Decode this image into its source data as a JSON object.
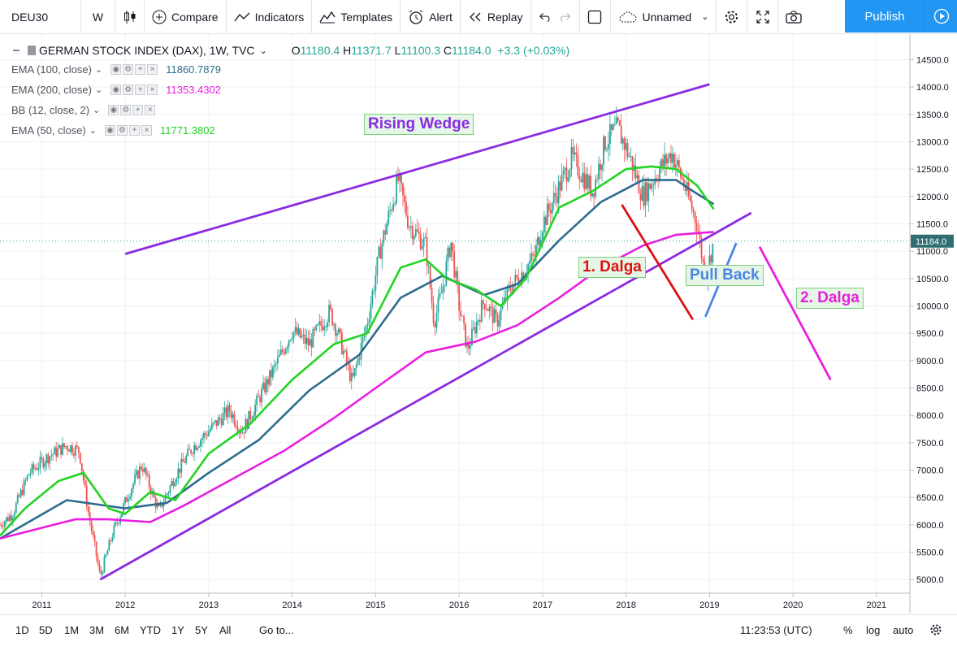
{
  "toolbar": {
    "symbol": "DEU30",
    "interval": "W",
    "compare": "Compare",
    "indicators": "Indicators",
    "templates": "Templates",
    "alert": "Alert",
    "replay": "Replay",
    "layout_name": "Unnamed",
    "publish": "Publish"
  },
  "legend": {
    "title": "GERMAN STOCK INDEX (DAX), 1W, TVC",
    "ohlc": {
      "o_label": "O",
      "o": "11180.4",
      "h_label": "H",
      "h": "11371.7",
      "l_label": "L",
      "l": "11100.3",
      "c_label": "C",
      "c": "11184.0",
      "change": "+3.3 (+0.03%)"
    },
    "indicators": [
      {
        "name": "EMA (100, close)",
        "value": "11860.7879",
        "color": "#2e6c8e"
      },
      {
        "name": "EMA (200, close)",
        "value": "11353.4302",
        "color": "#e91ee0"
      },
      {
        "name": "BB (12, close, 2)",
        "value": "",
        "color": "#999999"
      },
      {
        "name": "EMA (50, close)",
        "value": "11771.3802",
        "color": "#22d322"
      }
    ]
  },
  "annotations": {
    "rising_wedge": "Rising Wedge",
    "wave1": "1. Dalga",
    "pullback": "Pull Back",
    "wave2": "2. Dalga"
  },
  "chart_data": {
    "type": "candlestick",
    "title": "GERMAN STOCK INDEX (DAX), 1W, TVC",
    "x_ticks": [
      "2011",
      "2012",
      "2013",
      "2014",
      "2015",
      "2016",
      "2017",
      "2018",
      "2019",
      "2020",
      "2021"
    ],
    "y_ticks": [
      5000.0,
      5500.0,
      6000.0,
      6500.0,
      7000.0,
      7500.0,
      8000.0,
      8500.0,
      9000.0,
      9500.0,
      10000.0,
      10500.0,
      11000.0,
      11500.0,
      12000.0,
      12500.0,
      13000.0,
      13500.0,
      14000.0,
      14500.0
    ],
    "ylim": [
      4750,
      14700
    ],
    "xlim": [
      2010.5,
      2021.4
    ],
    "last_price": "11184.0",
    "price_path": [
      [
        2010.5,
        6000
      ],
      [
        2010.65,
        6200
      ],
      [
        2010.85,
        6950
      ],
      [
        2011.08,
        7250
      ],
      [
        2011.3,
        7450
      ],
      [
        2011.45,
        7350
      ],
      [
        2011.55,
        6300
      ],
      [
        2011.7,
        5050
      ],
      [
        2011.85,
        5850
      ],
      [
        2012.05,
        6600
      ],
      [
        2012.2,
        7100
      ],
      [
        2012.4,
        6250
      ],
      [
        2012.6,
        6900
      ],
      [
        2012.8,
        7400
      ],
      [
        2013.05,
        7800
      ],
      [
        2013.25,
        8100
      ],
      [
        2013.4,
        7700
      ],
      [
        2013.6,
        8300
      ],
      [
        2013.8,
        8900
      ],
      [
        2014.0,
        9550
      ],
      [
        2014.2,
        9300
      ],
      [
        2014.45,
        9900
      ],
      [
        2014.55,
        9500
      ],
      [
        2014.72,
        8600
      ],
      [
        2014.9,
        9700
      ],
      [
        2015.05,
        11000
      ],
      [
        2015.2,
        11900
      ],
      [
        2015.27,
        12300
      ],
      [
        2015.4,
        11500
      ],
      [
        2015.6,
        11100
      ],
      [
        2015.7,
        9700
      ],
      [
        2015.8,
        10300
      ],
      [
        2015.9,
        11200
      ],
      [
        2016.0,
        10000
      ],
      [
        2016.1,
        9200
      ],
      [
        2016.3,
        10100
      ],
      [
        2016.45,
        9700
      ],
      [
        2016.6,
        10300
      ],
      [
        2016.75,
        10600
      ],
      [
        2016.9,
        10900
      ],
      [
        2017.0,
        11500
      ],
      [
        2017.15,
        12000
      ],
      [
        2017.35,
        12700
      ],
      [
        2017.6,
        12100
      ],
      [
        2017.75,
        13000
      ],
      [
        2017.9,
        13250
      ],
      [
        2018.05,
        12700
      ],
      [
        2018.2,
        12000
      ],
      [
        2018.4,
        12500
      ],
      [
        2018.55,
        12800
      ],
      [
        2018.7,
        12200
      ],
      [
        2018.85,
        11500
      ],
      [
        2018.95,
        10500
      ],
      [
        2019.05,
        11184
      ]
    ],
    "series": [
      {
        "name": "EMA (100, close)",
        "value": 11860.7879,
        "color": "#2e6c8e",
        "path": [
          [
            2010.5,
            5750
          ],
          [
            2011.3,
            6450
          ],
          [
            2012.0,
            6300
          ],
          [
            2012.5,
            6400
          ],
          [
            2013.0,
            6950
          ],
          [
            2013.6,
            7550
          ],
          [
            2014.2,
            8450
          ],
          [
            2014.8,
            9100
          ],
          [
            2015.3,
            10150
          ],
          [
            2015.8,
            10550
          ],
          [
            2016.3,
            10200
          ],
          [
            2016.7,
            10400
          ],
          [
            2017.2,
            11200
          ],
          [
            2017.7,
            11900
          ],
          [
            2018.2,
            12300
          ],
          [
            2018.6,
            12300
          ],
          [
            2018.8,
            12100
          ],
          [
            2019.05,
            11861
          ]
        ]
      },
      {
        "name": "EMA (200, close)",
        "value": 11353.4302,
        "color": "#e91ee0",
        "path": [
          [
            2010.5,
            5750
          ],
          [
            2011.4,
            6100
          ],
          [
            2011.8,
            6100
          ],
          [
            2012.3,
            6050
          ],
          [
            2012.7,
            6350
          ],
          [
            2013.3,
            6850
          ],
          [
            2013.9,
            7350
          ],
          [
            2014.5,
            7950
          ],
          [
            2015.0,
            8500
          ],
          [
            2015.6,
            9150
          ],
          [
            2016.2,
            9350
          ],
          [
            2016.7,
            9650
          ],
          [
            2017.2,
            10150
          ],
          [
            2017.7,
            10700
          ],
          [
            2018.2,
            11100
          ],
          [
            2018.6,
            11300
          ],
          [
            2019.05,
            11353
          ]
        ]
      },
      {
        "name": "EMA (50, close)",
        "value": 11771.3802,
        "color": "#22d322",
        "path": [
          [
            2010.5,
            5800
          ],
          [
            2010.8,
            6300
          ],
          [
            2011.2,
            6800
          ],
          [
            2011.5,
            6950
          ],
          [
            2011.8,
            6300
          ],
          [
            2012.0,
            6200
          ],
          [
            2012.3,
            6600
          ],
          [
            2012.6,
            6450
          ],
          [
            2013.0,
            7300
          ],
          [
            2013.5,
            7850
          ],
          [
            2014.0,
            8650
          ],
          [
            2014.5,
            9300
          ],
          [
            2014.9,
            9500
          ],
          [
            2015.3,
            10700
          ],
          [
            2015.6,
            10850
          ],
          [
            2015.85,
            10500
          ],
          [
            2016.2,
            10300
          ],
          [
            2016.5,
            10000
          ],
          [
            2016.8,
            10500
          ],
          [
            2017.2,
            11800
          ],
          [
            2017.6,
            12100
          ],
          [
            2018.0,
            12500
          ],
          [
            2018.3,
            12550
          ],
          [
            2018.6,
            12500
          ],
          [
            2018.85,
            12200
          ],
          [
            2019.05,
            11771
          ]
        ]
      }
    ],
    "drawn_lines": [
      {
        "color": "#8a2be2",
        "from": [
          2012.0,
          10950
        ],
        "to": [
          2019.0,
          14050
        ]
      },
      {
        "color": "#8a2be2",
        "from": [
          2011.7,
          5000
        ],
        "to": [
          2019.5,
          11700
        ]
      },
      {
        "color": "#e01010",
        "from": [
          2017.95,
          11850
        ],
        "to": [
          2018.8,
          9750
        ]
      },
      {
        "color": "#4a86e8",
        "from": [
          2018.95,
          9800
        ],
        "to": [
          2019.32,
          11150
        ]
      },
      {
        "color": "#e91ee0",
        "from": [
          2019.6,
          11080
        ],
        "to": [
          2020.45,
          8650
        ]
      }
    ]
  },
  "bottom": {
    "ranges": [
      "1D",
      "5D",
      "1M",
      "3M",
      "6M",
      "YTD",
      "1Y",
      "5Y",
      "All"
    ],
    "goto": "Go to...",
    "time": "11:23:53 (UTC)",
    "percent": "%",
    "log": "log",
    "auto": "auto"
  }
}
